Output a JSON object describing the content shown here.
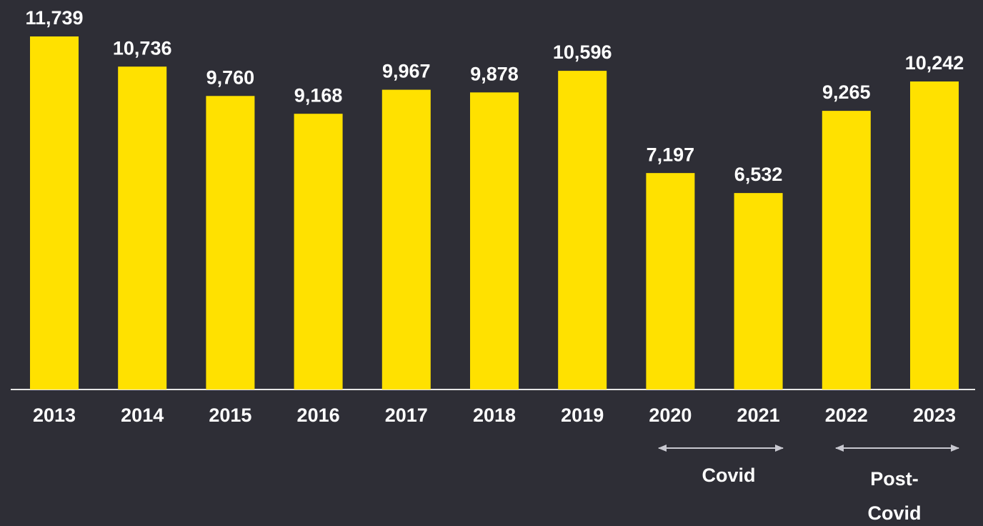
{
  "chart_data": {
    "type": "bar",
    "categories": [
      "2013",
      "2014",
      "2015",
      "2016",
      "2017",
      "2018",
      "2019",
      "2020",
      "2021",
      "2022",
      "2023"
    ],
    "values": [
      11739,
      10736,
      9760,
      9168,
      9967,
      9878,
      10596,
      7197,
      6532,
      9265,
      10242
    ],
    "value_labels": [
      "11,739",
      "10,736",
      "9,760",
      "9,168",
      "9,967",
      "9,878",
      "10,596",
      "7,197",
      "6,532",
      "9,265",
      "10,242"
    ],
    "color": "#ffe100",
    "annotations": [
      {
        "lines": [
          "Covid"
        ]
      },
      {
        "lines": [
          "Post-",
          "Covid"
        ]
      }
    ]
  }
}
